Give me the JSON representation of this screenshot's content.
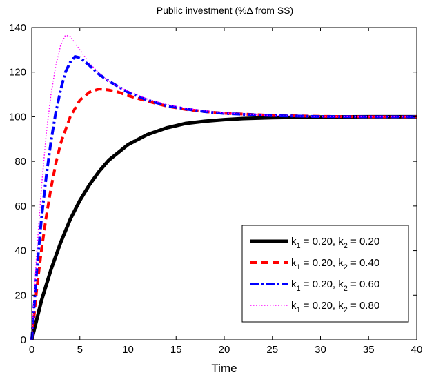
{
  "chart_data": {
    "type": "line",
    "title": "Public investment (%Δ from SS)",
    "xlabel": "Time",
    "ylabel": "",
    "xlim": [
      0,
      40
    ],
    "ylim": [
      0,
      140
    ],
    "xticks": [
      0,
      5,
      10,
      15,
      20,
      25,
      30,
      35,
      40
    ],
    "yticks": [
      0,
      20,
      40,
      60,
      80,
      100,
      120,
      140
    ],
    "grid": false,
    "legend_position": "lower-right",
    "series": [
      {
        "label_parts": [
          "k",
          "1",
          " = 0.20, k",
          "2",
          " = 0.20"
        ],
        "color": "#000000",
        "style": "solid",
        "x": [
          0,
          1,
          2,
          3,
          4,
          5,
          6,
          7,
          8,
          10,
          12,
          14,
          16,
          18,
          20,
          22,
          25,
          28,
          30,
          35,
          40
        ],
        "y": [
          0,
          17.5,
          31.5,
          43.5,
          54,
          62.5,
          69.5,
          75.5,
          80.5,
          87.5,
          92,
          95,
          97,
          98,
          98.7,
          99.2,
          99.6,
          99.8,
          99.9,
          100,
          100
        ]
      },
      {
        "label_parts": [
          "k",
          "1",
          " = 0.20, k",
          "2",
          " = 0.40"
        ],
        "color": "#ff0000",
        "style": "dashed",
        "x": [
          0,
          0.5,
          1,
          1.5,
          2,
          2.5,
          3,
          4,
          5,
          6,
          7,
          8,
          9,
          10,
          12,
          14,
          16,
          18,
          20,
          25,
          30,
          35,
          40
        ],
        "y": [
          0,
          22,
          40,
          55,
          68,
          79,
          88,
          100,
          107.5,
          111,
          112.5,
          112,
          111,
          109.5,
          107,
          104.8,
          103.3,
          102.3,
          101.6,
          100.6,
          100.2,
          100,
          100
        ]
      },
      {
        "label_parts": [
          "k",
          "1",
          " = 0.20, k",
          "2",
          " = 0.60"
        ],
        "color": "#0000ff",
        "style": "dashdot",
        "x": [
          0,
          0.5,
          1,
          1.5,
          2,
          2.5,
          3,
          3.5,
          4,
          4.5,
          5,
          6,
          7,
          8,
          9,
          10,
          12,
          14,
          16,
          18,
          20,
          25,
          30,
          35,
          40
        ],
        "y": [
          0,
          30,
          54,
          73,
          89,
          102,
          112,
          120,
          124.5,
          127,
          126.5,
          123,
          119,
          116,
          113.5,
          111,
          107.5,
          105,
          103.5,
          102.3,
          101.5,
          100.5,
          100.1,
          100,
          100
        ]
      },
      {
        "label_parts": [
          "k",
          "1",
          " = 0.20, k",
          "2",
          " = 0.80"
        ],
        "color": "#ff00ff",
        "style": "dotted",
        "x": [
          0,
          0.5,
          1,
          1.5,
          2,
          2.5,
          3,
          3.5,
          4,
          5,
          6,
          7,
          8,
          9,
          10,
          12,
          14,
          16,
          20,
          25,
          30,
          35,
          40
        ],
        "y": [
          0,
          38,
          68,
          92,
          110,
          123,
          132,
          136.5,
          136,
          130,
          124,
          119.5,
          116,
          113.5,
          111.5,
          108,
          105.5,
          103.8,
          101.7,
          100.5,
          100.1,
          100,
          100
        ]
      }
    ]
  }
}
